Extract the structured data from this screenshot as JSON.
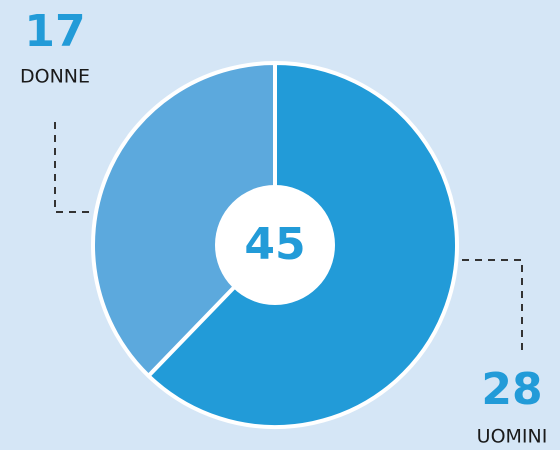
{
  "chart_data": {
    "type": "pie",
    "categories": [
      "DONNE",
      "UOMINI"
    ],
    "values": [
      17,
      28
    ],
    "colors": [
      "#5ca9dd",
      "#229bd8"
    ],
    "total": 45
  }
}
